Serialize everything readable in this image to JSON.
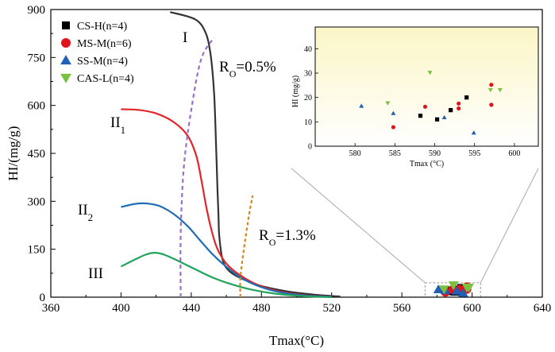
{
  "chart_data": {
    "type": "line",
    "xlabel": "Tmax(°C)",
    "ylabel": "HI/(mg/g)",
    "xlim": [
      360,
      640
    ],
    "ylim": [
      0,
      900
    ],
    "xticks": [
      360,
      400,
      440,
      480,
      520,
      560,
      600,
      640
    ],
    "yticks": [
      0,
      150,
      300,
      450,
      600,
      750,
      900
    ],
    "grid": false,
    "legend_position": "top-left",
    "legend": [
      {
        "label": "CS-H(n=4)",
        "marker": "square",
        "color": "#000000"
      },
      {
        "label": "MS-M(n=6)",
        "marker": "circle",
        "color": "#e0141b"
      },
      {
        "label": "SS-M(n=4)",
        "marker": "triangle-up",
        "color": "#1f5fb4"
      },
      {
        "label": "CAS-L(n=4)",
        "marker": "triangle-down",
        "color": "#7ac142"
      }
    ],
    "kerogen_curves": [
      {
        "name": "I",
        "color": "#333333",
        "points": [
          [
            428,
            892
          ],
          [
            442,
            870
          ],
          [
            448,
            830
          ],
          [
            451,
            760
          ],
          [
            453,
            640
          ],
          [
            454,
            500
          ],
          [
            455,
            330
          ],
          [
            455.5,
            260
          ],
          [
            456,
            190
          ],
          [
            458,
            115
          ],
          [
            462,
            80
          ],
          [
            470,
            55
          ],
          [
            480,
            35
          ],
          [
            495,
            18
          ],
          [
            510,
            8
          ],
          [
            525,
            2
          ]
        ]
      },
      {
        "name": "II1",
        "color": "#e3252b",
        "points": [
          [
            400,
            588
          ],
          [
            410,
            586
          ],
          [
            420,
            575
          ],
          [
            430,
            548
          ],
          [
            438,
            505
          ],
          [
            443,
            440
          ],
          [
            446,
            360
          ],
          [
            449,
            270
          ],
          [
            452,
            200
          ],
          [
            455,
            150
          ],
          [
            460,
            105
          ],
          [
            468,
            68
          ],
          [
            478,
            38
          ],
          [
            490,
            18
          ],
          [
            505,
            6
          ],
          [
            520,
            1
          ]
        ]
      },
      {
        "name": "II2",
        "color": "#1f6db5",
        "points": [
          [
            400,
            282
          ],
          [
            408,
            292
          ],
          [
            415,
            293
          ],
          [
            422,
            285
          ],
          [
            430,
            260
          ],
          [
            438,
            222
          ],
          [
            445,
            178
          ],
          [
            452,
            135
          ],
          [
            460,
            95
          ],
          [
            468,
            62
          ],
          [
            478,
            35
          ],
          [
            490,
            16
          ],
          [
            505,
            5
          ],
          [
            520,
            1
          ]
        ]
      },
      {
        "name": "III",
        "color": "#21a35a",
        "points": [
          [
            400,
            96
          ],
          [
            408,
            118
          ],
          [
            414,
            133
          ],
          [
            419,
            139
          ],
          [
            424,
            134
          ],
          [
            432,
            115
          ],
          [
            442,
            88
          ],
          [
            452,
            62
          ],
          [
            462,
            42
          ],
          [
            474,
            24
          ],
          [
            488,
            11
          ],
          [
            505,
            3
          ],
          [
            520,
            0
          ]
        ]
      }
    ],
    "iso_reflectance_lines": [
      {
        "label_main": "R",
        "label_sub": "O",
        "label_value": "=0.5%",
        "color": "#9b6fc6",
        "points": [
          [
            434,
            0
          ],
          [
            434,
            200
          ],
          [
            436,
            420
          ],
          [
            441,
            620
          ],
          [
            446,
            750
          ],
          [
            453,
            812
          ]
        ]
      },
      {
        "label_main": "R",
        "label_sub": "O",
        "label_value": "=1.3%",
        "color": "#d08a1e",
        "points": [
          [
            468,
            0
          ],
          [
            468,
            60
          ],
          [
            470,
            150
          ],
          [
            473,
            260
          ],
          [
            475,
            318
          ]
        ]
      }
    ],
    "curve_labels": [
      {
        "main": "I",
        "sub": ""
      },
      {
        "main": "II",
        "sub": "1"
      },
      {
        "main": "II",
        "sub": "2"
      },
      {
        "main": "III",
        "sub": ""
      }
    ],
    "samples": [
      {
        "group": "CS-H",
        "points": [
          [
            588.2,
            12.5
          ],
          [
            590.3,
            11
          ],
          [
            592,
            14.8
          ],
          [
            594,
            20
          ]
        ]
      },
      {
        "group": "MS-M",
        "points": [
          [
            584.8,
            7.8
          ],
          [
            588.8,
            16.2
          ],
          [
            593,
            17.5
          ],
          [
            593,
            15.5
          ],
          [
            597.1,
            25.2
          ],
          [
            597.1,
            17
          ]
        ]
      },
      {
        "group": "SS-M",
        "points": [
          [
            580.8,
            16.5
          ],
          [
            584.8,
            13.5
          ],
          [
            591.2,
            11.8
          ],
          [
            594.9,
            5.5
          ]
        ]
      },
      {
        "group": "CAS-L",
        "points": [
          [
            584.1,
            17.7
          ],
          [
            589.4,
            30.2
          ],
          [
            597,
            23.1
          ],
          [
            598.2,
            23.1
          ]
        ]
      }
    ],
    "inset": {
      "xlabel": "Tmax (°C)",
      "ylabel": "HI (mg/g)",
      "xlim": [
        575,
        603
      ],
      "ylim": [
        0,
        45
      ],
      "xticks": [
        580,
        585,
        590,
        595,
        600
      ],
      "yticks": [
        0,
        10,
        20,
        30,
        40
      ]
    }
  }
}
